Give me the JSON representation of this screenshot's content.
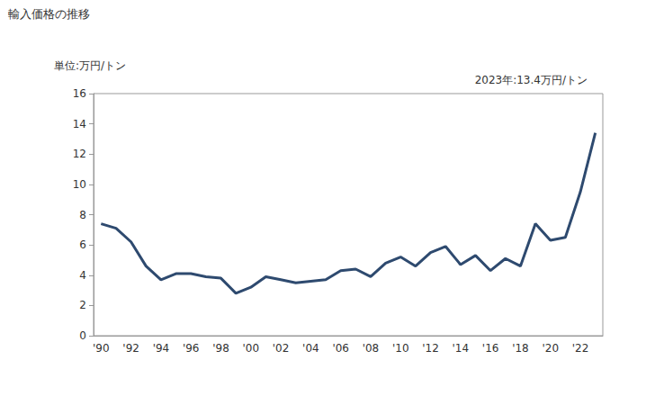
{
  "chart_data": {
    "type": "line",
    "title": "輸入価格の推移",
    "y_label": "単位:万円/トン",
    "annotation": "2023年:13.4万円/トン",
    "categories": [
      "'90",
      null,
      "'92",
      null,
      "'94",
      null,
      "'96",
      null,
      "'98",
      null,
      "'00",
      null,
      "'02",
      null,
      "'04",
      null,
      "'06",
      null,
      "'08",
      null,
      "'10",
      null,
      "'12",
      null,
      "'14",
      null,
      "'16",
      null,
      "'18",
      null,
      "'20",
      null,
      "'22",
      null
    ],
    "values": [
      7.4,
      7.1,
      6.2,
      4.6,
      3.7,
      4.1,
      4.1,
      3.9,
      3.8,
      2.8,
      3.2,
      3.9,
      3.7,
      3.5,
      3.6,
      3.7,
      4.3,
      4.4,
      3.9,
      4.8,
      5.2,
      4.6,
      5.5,
      5.9,
      4.7,
      5.3,
      4.3,
      5.1,
      4.6,
      7.4,
      6.3,
      6.5,
      9.5,
      13.4
    ],
    "color": "#2e4a6f",
    "ylim": [
      0,
      16
    ],
    "yticks": [
      0,
      2,
      4,
      6,
      8,
      10,
      12,
      14,
      16
    ],
    "grid": false
  }
}
